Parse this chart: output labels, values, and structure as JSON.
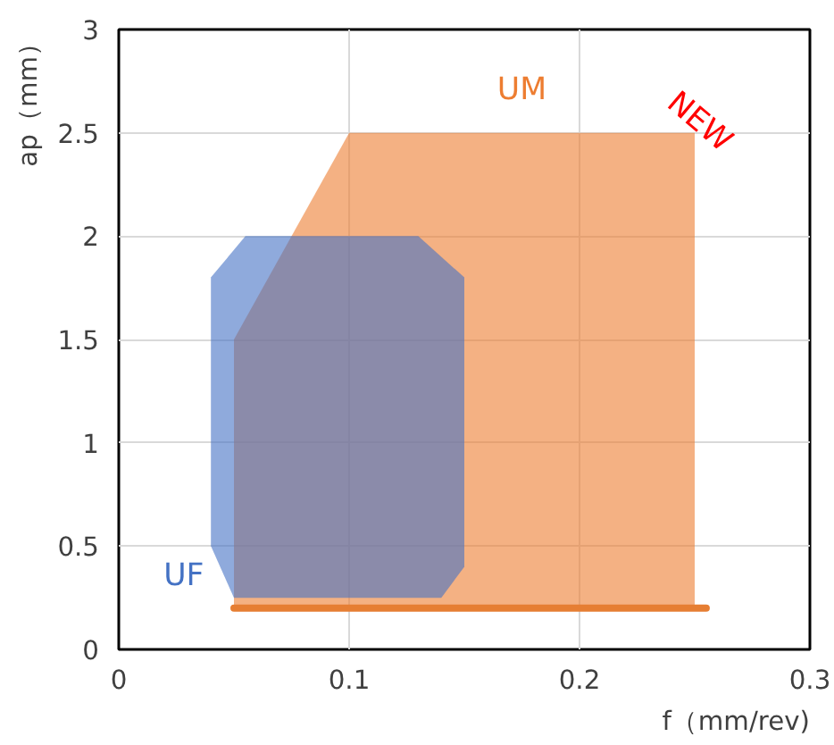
{
  "chart_data": {
    "type": "area",
    "xlabel": "f（mm/rev)",
    "ylabel": "ap（mm）",
    "xlim": [
      0,
      0.3
    ],
    "ylim": [
      0,
      3
    ],
    "xticks": [
      0,
      0.1,
      0.2,
      0.3
    ],
    "yticks": [
      0,
      0.5,
      1,
      1.5,
      2,
      2.5,
      3
    ],
    "grid": true,
    "series": [
      {
        "name": "UM",
        "color": "#ed7d31",
        "x": [
          0.05,
          0.1,
          0.25,
          0.25,
          0.05
        ],
        "values": [
          1.5,
          2.5,
          2.5,
          0.2,
          0.2
        ]
      },
      {
        "name": "UF",
        "color": "#4472c4",
        "x": [
          0.04,
          0.055,
          0.13,
          0.15,
          0.15,
          0.14,
          0.05,
          0.04
        ],
        "values": [
          1.8,
          2.0,
          2.0,
          1.8,
          0.4,
          0.25,
          0.25,
          0.5
        ]
      },
      {
        "type": "line",
        "color": "#e67e33",
        "x": [
          0.05,
          0.255
        ],
        "values": [
          0.2,
          0.2
        ]
      }
    ],
    "annotations": [
      "NEW"
    ]
  }
}
